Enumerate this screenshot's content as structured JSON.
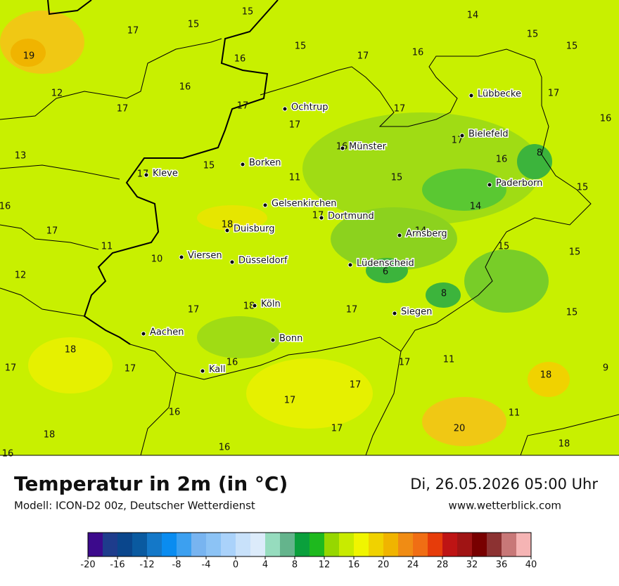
{
  "map": {
    "temperature_labels": [
      15,
      14,
      17,
      15,
      15,
      15,
      17,
      16,
      15,
      19,
      16,
      12,
      16,
      17,
      17,
      17,
      17,
      16,
      17,
      17,
      13,
      16,
      8,
      16,
      15,
      17,
      11,
      15,
      15,
      16,
      14,
      17,
      18,
      17,
      14,
      11,
      15,
      15,
      10,
      12,
      6,
      8,
      17,
      18,
      17,
      15,
      18,
      17,
      17,
      11,
      16,
      17,
      9,
      18,
      17,
      16,
      17,
      11,
      18,
      17,
      20,
      18,
      16,
      16
    ],
    "cities": [
      "Lübbecke",
      "Ochtrup",
      "Bielefeld",
      "Münster",
      "Borken",
      "Kleve",
      "Paderborn",
      "Gelsenkirchen",
      "Dortmund",
      "Duisburg",
      "Arnsberg",
      "Viersen",
      "Düsseldorf",
      "Lüdenscheid",
      "Köln",
      "Siegen",
      "Aachen",
      "Bonn",
      "Kall"
    ]
  },
  "footer": {
    "title": "Temperatur in 2m (in °C)",
    "model": "Modell: ICON-D2 00z, Deutscher Wetterdienst",
    "datetime": "Di, 26.05.2026 05:00 Uhr",
    "website": "www.wetterblick.com"
  },
  "colorbar": {
    "colors": [
      "#3c0a8c",
      "#1e3c8c",
      "#0a468c",
      "#0a5aa0",
      "#1478c8",
      "#0a8cf0",
      "#3ca0f0",
      "#78b4f0",
      "#8cc3f5",
      "#aad2fa",
      "#c8e1fa",
      "#dcebfa",
      "#96dcbe",
      "#64b48c",
      "#0aa03c",
      "#1eb91e",
      "#96d700",
      "#c8eb00",
      "#f0f500",
      "#f0d200",
      "#f0b400",
      "#f08c14",
      "#f06e14",
      "#e63c0a",
      "#be1414",
      "#a01414",
      "#780000",
      "#8c3232",
      "#c87878",
      "#f5b4b4"
    ],
    "ticks": [
      -20,
      -16,
      -12,
      -8,
      -4,
      0,
      4,
      8,
      12,
      16,
      20,
      24,
      28,
      32,
      36,
      40
    ]
  }
}
